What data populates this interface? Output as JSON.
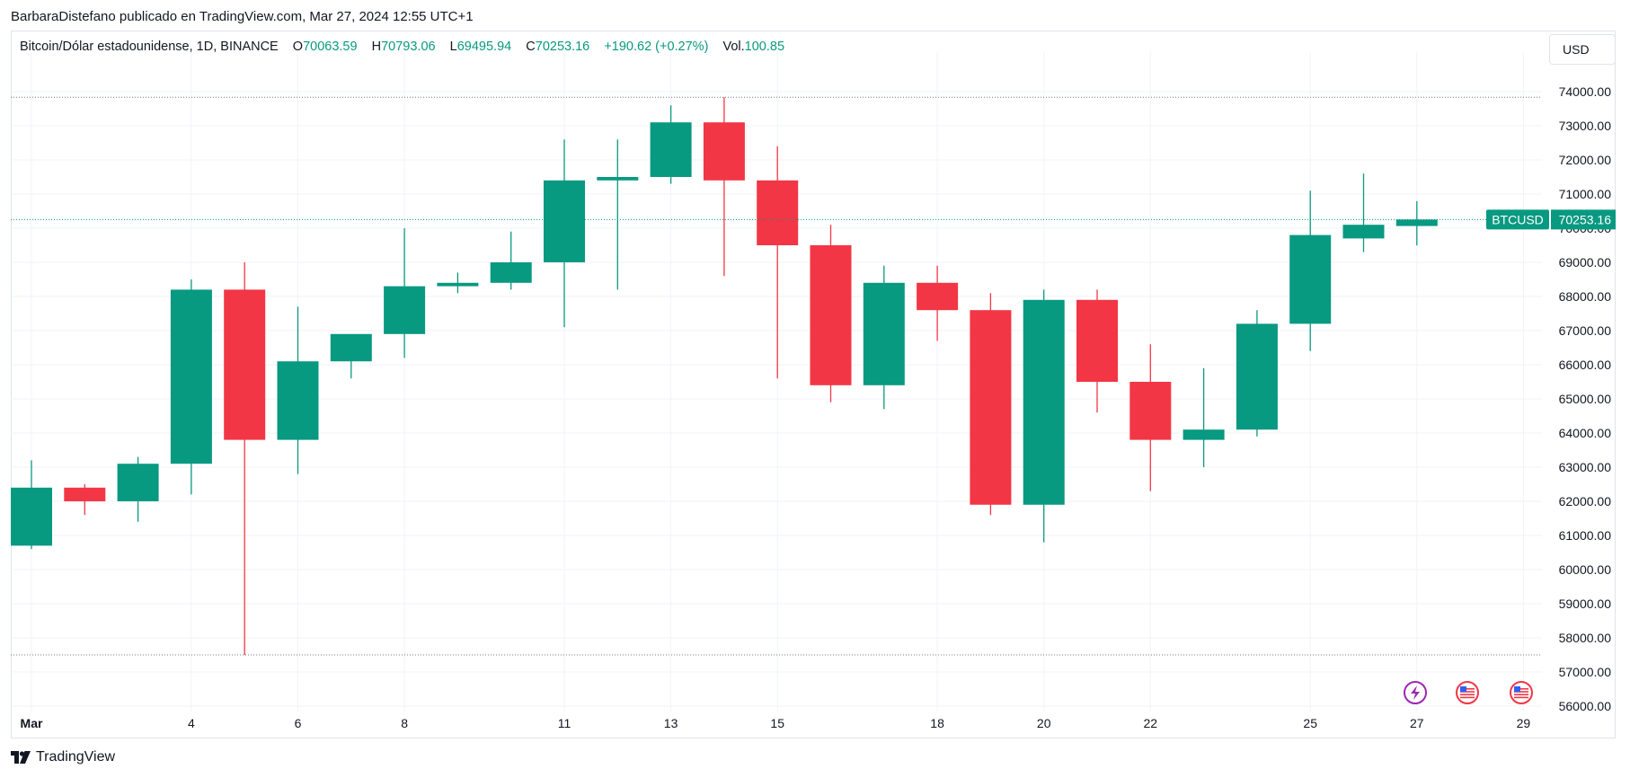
{
  "attribution": "BarbaraDistefano publicado en TradingView.com, Mar 27, 2024 12:55 UTC+1",
  "legend": {
    "symbol": "Bitcoin/Dólar estadounidense, 1D, BINANCE",
    "open_label": "O",
    "open": "70063.59",
    "high_label": "H",
    "high": "70793.06",
    "low_label": "L",
    "low": "69495.94",
    "close_label": "C",
    "close": "70253.16",
    "change": "+190.62 (+0.27%)",
    "vol_label": "Vol.",
    "vol": "100.85"
  },
  "currency_button": "USD",
  "footer": {
    "brand": "TradingView"
  },
  "colors": {
    "up": "#089981",
    "down": "#f23645",
    "grid": "#f0f3fa",
    "axis_text": "#131722"
  },
  "chart_data": {
    "type": "candlestick",
    "symbol_tag": "BTCUSD",
    "last_price_label": "70253.16",
    "last_price": 70253.16,
    "ylim": [
      55700,
      75000
    ],
    "y_ticks": [
      56000,
      57000,
      58000,
      59000,
      60000,
      61000,
      62000,
      63000,
      64000,
      65000,
      66000,
      67000,
      68000,
      69000,
      70000,
      71000,
      72000,
      73000,
      74000
    ],
    "y_tick_labels": [
      "56000.00",
      "57000.00",
      "58000.00",
      "59000.00",
      "60000.00",
      "61000.00",
      "62000.00",
      "63000.00",
      "64000.00",
      "65000.00",
      "66000.00",
      "67000.00",
      "68000.00",
      "69000.00",
      "70000.00",
      "71000.00",
      "72000.00",
      "73000.00",
      "74000.00"
    ],
    "x_ticks": [
      {
        "day": 1,
        "label": "Mar"
      },
      {
        "day": 4,
        "label": "4"
      },
      {
        "day": 6,
        "label": "6"
      },
      {
        "day": 8,
        "label": "8"
      },
      {
        "day": 11,
        "label": "11"
      },
      {
        "day": 13,
        "label": "13"
      },
      {
        "day": 15,
        "label": "15"
      },
      {
        "day": 18,
        "label": "18"
      },
      {
        "day": 20,
        "label": "20"
      },
      {
        "day": 22,
        "label": "22"
      },
      {
        "day": 25,
        "label": "25"
      },
      {
        "day": 27,
        "label": "27"
      },
      {
        "day": 29,
        "label": "29"
      }
    ],
    "range_high": 73835,
    "range_low": 57500,
    "candles": [
      {
        "date": "2024-03-01",
        "open": 60700,
        "high": 63200,
        "low": 60600,
        "close": 62400
      },
      {
        "date": "2024-03-02",
        "open": 62400,
        "high": 62500,
        "low": 61600,
        "close": 62000
      },
      {
        "date": "2024-03-03",
        "open": 62000,
        "high": 63300,
        "low": 61400,
        "close": 63100
      },
      {
        "date": "2024-03-04",
        "open": 63100,
        "high": 68500,
        "low": 62200,
        "close": 68200
      },
      {
        "date": "2024-03-05",
        "open": 68200,
        "high": 69000,
        "low": 57500,
        "close": 63800
      },
      {
        "date": "2024-03-06",
        "open": 63800,
        "high": 67700,
        "low": 62800,
        "close": 66100
      },
      {
        "date": "2024-03-07",
        "open": 66100,
        "high": 66800,
        "low": 65600,
        "close": 66900
      },
      {
        "date": "2024-03-08",
        "open": 66900,
        "high": 70000,
        "low": 66200,
        "close": 68300
      },
      {
        "date": "2024-03-09",
        "open": 68300,
        "high": 68700,
        "low": 68100,
        "close": 68400
      },
      {
        "date": "2024-03-10",
        "open": 68400,
        "high": 69900,
        "low": 68200,
        "close": 69000
      },
      {
        "date": "2024-03-11",
        "open": 69000,
        "high": 72600,
        "low": 67100,
        "close": 71400
      },
      {
        "date": "2024-03-12",
        "open": 71400,
        "high": 72600,
        "low": 68200,
        "close": 71500
      },
      {
        "date": "2024-03-13",
        "open": 71500,
        "high": 73600,
        "low": 71300,
        "close": 73100
      },
      {
        "date": "2024-03-14",
        "open": 73100,
        "high": 73835,
        "low": 68600,
        "close": 71400
      },
      {
        "date": "2024-03-15",
        "open": 71400,
        "high": 72400,
        "low": 65600,
        "close": 69500
      },
      {
        "date": "2024-03-16",
        "open": 69500,
        "high": 70100,
        "low": 64900,
        "close": 65400
      },
      {
        "date": "2024-03-17",
        "open": 65400,
        "high": 68900,
        "low": 64700,
        "close": 68400
      },
      {
        "date": "2024-03-18",
        "open": 68400,
        "high": 68900,
        "low": 66700,
        "close": 67600
      },
      {
        "date": "2024-03-19",
        "open": 67600,
        "high": 68100,
        "low": 61600,
        "close": 61900
      },
      {
        "date": "2024-03-20",
        "open": 61900,
        "high": 68200,
        "low": 60800,
        "close": 67900
      },
      {
        "date": "2024-03-21",
        "open": 67900,
        "high": 68200,
        "low": 64600,
        "close": 65500
      },
      {
        "date": "2024-03-22",
        "open": 65500,
        "high": 66600,
        "low": 62300,
        "close": 63800
      },
      {
        "date": "2024-03-23",
        "open": 63800,
        "high": 65900,
        "low": 63000,
        "close": 64100
      },
      {
        "date": "2024-03-24",
        "open": 64100,
        "high": 67600,
        "low": 63900,
        "close": 67200
      },
      {
        "date": "2024-03-25",
        "open": 67200,
        "high": 71100,
        "low": 66400,
        "close": 69800
      },
      {
        "date": "2024-03-26",
        "open": 69700,
        "high": 71600,
        "low": 69300,
        "close": 70100
      },
      {
        "date": "2024-03-27",
        "open": 70063.59,
        "high": 70793.06,
        "low": 69495.94,
        "close": 70253.16
      }
    ],
    "event_icons": [
      "lightning-icon",
      "us-flag-icon",
      "us-flag-icon"
    ],
    "grid": true
  }
}
